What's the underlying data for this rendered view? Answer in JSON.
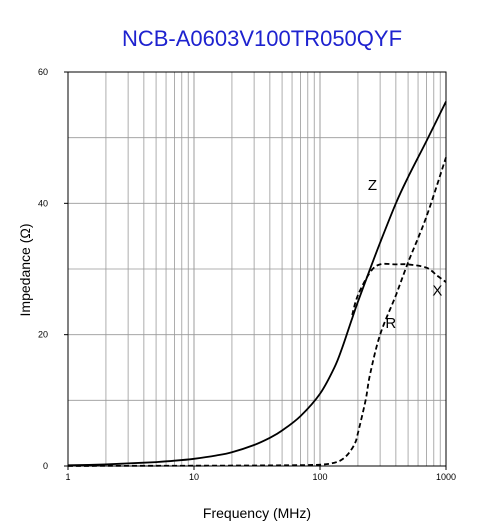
{
  "chart_data": {
    "type": "line",
    "title": "NCB-A0603V100TR050QYF",
    "xlabel": "Frequency (MHz)",
    "ylabel": "Impedance (Ω)",
    "x_scale": "log",
    "xlim": [
      1,
      1000
    ],
    "ylim": [
      0,
      60
    ],
    "x_ticks": [
      "1",
      "10",
      "100",
      "1000"
    ],
    "y_ticks": [
      "0",
      "20",
      "40",
      "60"
    ],
    "grid": true,
    "series": [
      {
        "name": "Z",
        "style": "solid",
        "x": [
          1,
          2,
          3,
          5,
          7,
          10,
          15,
          20,
          30,
          40,
          50,
          70,
          100,
          130,
          150,
          180,
          200,
          250,
          300,
          400,
          500,
          700,
          1000
        ],
        "y": [
          0.1,
          0.25,
          0.4,
          0.6,
          0.8,
          1.1,
          1.6,
          2.1,
          3.2,
          4.3,
          5.4,
          7.6,
          11.0,
          15.0,
          18.0,
          22.5,
          25.0,
          30.0,
          34.0,
          40.0,
          44.0,
          49.5,
          55.5
        ]
      },
      {
        "name": "R",
        "style": "dashed",
        "x": [
          1,
          10,
          50,
          100,
          130,
          150,
          170,
          190,
          200,
          230,
          250,
          300,
          400,
          500,
          700,
          1000
        ],
        "y": [
          0,
          0.05,
          0.1,
          0.2,
          0.5,
          1.0,
          2.0,
          3.5,
          5.0,
          10.0,
          14.0,
          20.0,
          26.0,
          31.0,
          38.0,
          47.0
        ]
      },
      {
        "name": "X",
        "style": "dashed",
        "x": [
          180,
          200,
          250,
          300,
          400,
          500,
          700,
          850,
          1000
        ],
        "y": [
          23.0,
          26.0,
          29.5,
          30.7,
          30.7,
          30.7,
          30.2,
          29.0,
          28.0
        ]
      }
    ],
    "colors": {
      "title": "#1e22cf",
      "curves": "#000000",
      "grid": "#999999",
      "frame": "#000000"
    }
  }
}
